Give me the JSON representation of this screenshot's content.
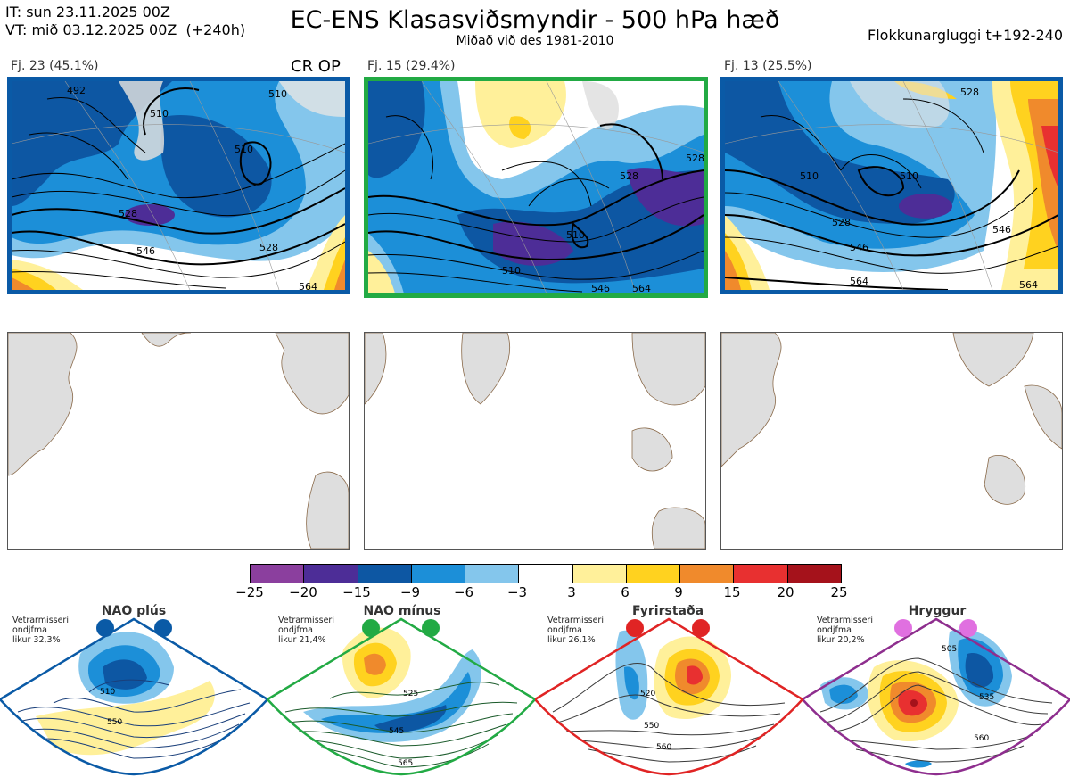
{
  "header": {
    "init_time": "IT: sun 23.11.2025 00Z",
    "valid_time": "VT: mið 03.12.2025 00Z  (+240h)",
    "title": "EC-ENS Klasasviðsmyndir - 500 hPa hæð",
    "subtitle": "Miðað við des 1981-2010",
    "cluster_window": "Flokkunargluggi t+192-240"
  },
  "clusters": [
    {
      "label": "Fj. 23 (45.1%)",
      "tag": "CR OP",
      "border_color": "#0a5aa6",
      "contour_labels": [
        "492",
        "510",
        "510",
        "510",
        "528",
        "528",
        "546",
        "564"
      ]
    },
    {
      "label": "Fj. 15 (29.4%)",
      "tag": "",
      "border_color": "#22aa44",
      "contour_labels": [
        "510",
        "528",
        "510",
        "528",
        "546",
        "564"
      ]
    },
    {
      "label": "Fj. 13 (25.5%)",
      "tag": "",
      "border_color": "#0a5aa6",
      "contour_labels": [
        "528",
        "510",
        "510",
        "528",
        "546",
        "546",
        "564",
        "564"
      ]
    }
  ],
  "colorbar": {
    "ticks": [
      "−25",
      "−20",
      "−15",
      "−9",
      "−6",
      "−3",
      "3",
      "6",
      "9",
      "15",
      "20",
      "25"
    ],
    "colors": [
      "#8b3f9e",
      "#4d2d97",
      "#0d57a3",
      "#1c8fd8",
      "#84c6ec",
      "#ffffff",
      "#fff09a",
      "#ffd21f",
      "#f08a2c",
      "#e83030",
      "#a5121b"
    ]
  },
  "regimes": [
    {
      "title": "NAO plús",
      "note": [
        "Vetrarmisseri",
        "ondjfma",
        "likur 32,3%"
      ],
      "color": "#0a5aa6",
      "dot_color": "#0a5aa6",
      "contour_labels": [
        "510",
        "550"
      ]
    },
    {
      "title": "NAO mínus",
      "note": [
        "Vetrarmisseri",
        "ondjfma",
        "likur 21,4%"
      ],
      "color": "#22aa44",
      "dot_color": "#22aa44",
      "contour_labels": [
        "525",
        "545",
        "565"
      ]
    },
    {
      "title": "Fyrirstaða",
      "note": [
        "Vetrarmisseri",
        "ondjfma",
        "likur 26,1%"
      ],
      "color": "#e02424",
      "dot_color": "#e02424",
      "contour_labels": [
        "520",
        "550",
        "560"
      ]
    },
    {
      "title": "Hryggur",
      "note": [
        "Vetrarmisseri",
        "ondjfma",
        "likur 20,2%"
      ],
      "color": "#8e2e8e",
      "dot_color": "#e070e0",
      "contour_labels": [
        "505",
        "535",
        "560"
      ]
    }
  ]
}
